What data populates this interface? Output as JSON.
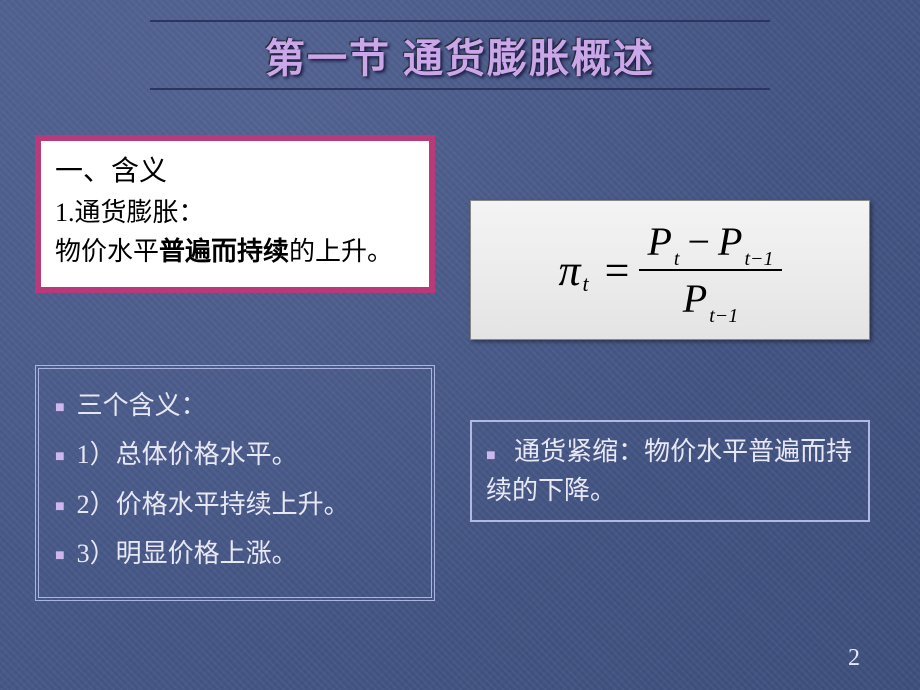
{
  "title": "第一节 通货膨胀概述",
  "definition": {
    "heading": "一、含义",
    "label": "1.通货膨胀：",
    "body_before": "物价水平",
    "body_bold": "普遍而持续",
    "body_after": "的上升。"
  },
  "formula": {
    "lhs_symbol": "π",
    "lhs_sub": "t",
    "num_P1": "P",
    "num_P1_sub": "t",
    "num_minus": "−",
    "num_P2": "P",
    "num_P2_sub": "t−1",
    "den_P": "P",
    "den_P_sub": "t−1"
  },
  "meanings": {
    "heading": "三个含义：",
    "items": [
      "1）总体价格水平。",
      "2）价格水平持续上升。",
      "3）明显价格上涨。"
    ]
  },
  "deflation": "通货紧缩：物价水平普遍而持续的下降。",
  "page_number": "2",
  "colors": {
    "title_color": "#c9a7e8",
    "def_border": "#b83a7a",
    "box_border": "#a9b4e0",
    "bg_from": "#4a5a8a",
    "bg_to": "#3d4d7a",
    "text_light": "#e8e8f4"
  }
}
